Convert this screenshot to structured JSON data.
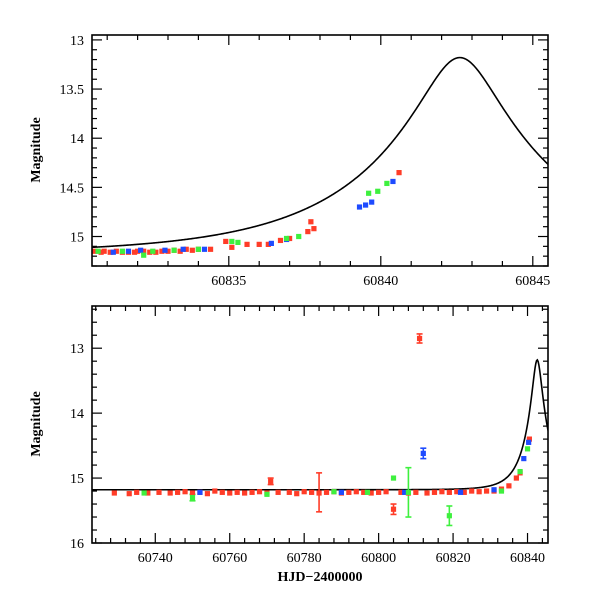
{
  "chart_data": [
    {
      "id": "top",
      "type": "scatter",
      "title": "",
      "xlabel": "",
      "ylabel": "Magnitude",
      "xlim": [
        60830.5,
        60845.5
      ],
      "ylim": [
        15.3,
        12.95
      ],
      "inverted_y": true,
      "grid": false,
      "legend": "none",
      "x_ticks": [
        60835,
        60840,
        60845
      ],
      "y_ticks": [
        13,
        13.5,
        14,
        14.5,
        15
      ],
      "x_tick_labels": [
        "60835",
        "60840",
        "60845"
      ],
      "y_tick_labels": [
        "13",
        "13.5",
        "14",
        "14.5",
        "15"
      ],
      "model": {
        "peak_x": 60842.6,
        "peak_mag": 13.18,
        "base_mag": 15.18,
        "u0": 0.2,
        "tE": 6.0,
        "color": "#000000"
      },
      "series": [
        {
          "color": "#ff3c28",
          "points": [
            [
              60830.6,
              15.15
            ],
            [
              60830.8,
              15.16
            ],
            [
              60830.9,
              15.15
            ],
            [
              60831.1,
              15.16
            ],
            [
              60831.3,
              15.15
            ],
            [
              60831.5,
              15.16
            ],
            [
              60831.7,
              15.16
            ],
            [
              60831.9,
              15.16
            ],
            [
              60832.0,
              15.15
            ],
            [
              60832.2,
              15.15
            ],
            [
              60832.4,
              15.16
            ],
            [
              60832.6,
              15.16
            ],
            [
              60832.8,
              15.15
            ],
            [
              60833.0,
              15.15
            ],
            [
              60833.2,
              15.14
            ],
            [
              60833.4,
              15.15
            ],
            [
              60833.6,
              15.13
            ],
            [
              60833.8,
              15.14
            ],
            [
              60834.0,
              15.13
            ],
            [
              60834.4,
              15.13
            ],
            [
              60834.9,
              15.05
            ],
            [
              60835.1,
              15.11
            ],
            [
              60835.6,
              15.08
            ],
            [
              60836.0,
              15.08
            ],
            [
              60836.3,
              15.08
            ],
            [
              60836.7,
              15.04
            ],
            [
              60837.0,
              15.02
            ],
            [
              60837.7,
              14.85
            ],
            [
              60837.8,
              14.92
            ],
            [
              60837.6,
              14.95
            ],
            [
              60840.6,
              14.35
            ]
          ]
        },
        {
          "color": "#1e4bff",
          "points": [
            [
              60831.2,
              15.16
            ],
            [
              60831.7,
              15.15
            ],
            [
              60832.1,
              15.14
            ],
            [
              60832.9,
              15.14
            ],
            [
              60833.5,
              15.13
            ],
            [
              60834.2,
              15.13
            ],
            [
              60836.4,
              15.07
            ],
            [
              60836.9,
              15.03
            ],
            [
              60839.3,
              14.7
            ],
            [
              60839.5,
              14.68
            ],
            [
              60839.7,
              14.65
            ],
            [
              60840.4,
              14.44
            ]
          ]
        },
        {
          "color": "#3ef03e",
          "points": [
            [
              60830.7,
              15.15
            ],
            [
              60831.5,
              15.15
            ],
            [
              60832.2,
              15.19
            ],
            [
              60832.5,
              15.15
            ],
            [
              60833.2,
              15.14
            ],
            [
              60834.0,
              15.13
            ],
            [
              60835.1,
              15.05
            ],
            [
              60835.3,
              15.06
            ],
            [
              60836.9,
              15.02
            ],
            [
              60837.3,
              15.0
            ],
            [
              60839.6,
              14.56
            ],
            [
              60839.9,
              14.54
            ],
            [
              60840.2,
              14.46
            ]
          ]
        }
      ]
    },
    {
      "id": "bottom",
      "type": "scatter",
      "title": "",
      "xlabel": "HJD−2400000",
      "ylabel": "Magnitude",
      "xlim": [
        60723,
        60845.5
      ],
      "ylim": [
        16.0,
        12.35
      ],
      "inverted_y": true,
      "grid": false,
      "legend": "none",
      "x_ticks": [
        60740,
        60760,
        60780,
        60800,
        60820,
        60840
      ],
      "y_ticks": [
        13,
        14,
        15,
        16
      ],
      "x_tick_labels": [
        "60740",
        "60760",
        "60780",
        "60800",
        "60820",
        "60840"
      ],
      "y_tick_labels": [
        "13",
        "14",
        "15",
        "16"
      ],
      "model": {
        "peak_x": 60842.6,
        "peak_mag": 13.18,
        "base_mag": 15.18,
        "u0": 0.2,
        "tE": 6.0,
        "color": "#000000"
      },
      "series": [
        {
          "color": "#ff3c28",
          "points": [
            [
              60729,
              15.23
            ],
            [
              60733,
              15.24
            ],
            [
              60735,
              15.22
            ],
            [
              60738,
              15.23
            ],
            [
              60741,
              15.22
            ],
            [
              60744,
              15.23
            ],
            [
              60746,
              15.22
            ],
            [
              60748,
              15.21
            ],
            [
              60750,
              15.23
            ],
            [
              60752,
              15.22
            ],
            [
              60754,
              15.24
            ],
            [
              60756,
              15.2
            ],
            [
              60758,
              15.22
            ],
            [
              60760,
              15.23
            ],
            [
              60762,
              15.22
            ],
            [
              60764,
              15.23
            ],
            [
              60766,
              15.22
            ],
            [
              60768,
              15.21
            ],
            [
              60770,
              15.23
            ],
            [
              60771,
              15.05
            ],
            [
              60773,
              15.22
            ],
            [
              60776,
              15.22
            ],
            [
              60778,
              15.24
            ],
            [
              60780,
              15.21
            ],
            [
              60782,
              15.22
            ],
            [
              60784,
              15.23
            ],
            [
              60786,
              15.22
            ],
            [
              60788,
              15.21
            ],
            [
              60790,
              15.23
            ],
            [
              60792,
              15.22
            ],
            [
              60794,
              15.21
            ],
            [
              60796,
              15.22
            ],
            [
              60798,
              15.23
            ],
            [
              60800,
              15.22
            ],
            [
              60802,
              15.21
            ],
            [
              60804,
              15.48
            ],
            [
              60806,
              15.22
            ],
            [
              60808,
              15.23
            ],
            [
              60810,
              15.22
            ],
            [
              60811,
              12.85
            ],
            [
              60813,
              15.23
            ],
            [
              60815,
              15.22
            ],
            [
              60817,
              15.21
            ],
            [
              60819,
              15.22
            ],
            [
              60821,
              15.21
            ],
            [
              60823,
              15.22
            ],
            [
              60825,
              15.2
            ],
            [
              60827,
              15.21
            ],
            [
              60829,
              15.2
            ],
            [
              60831,
              15.2
            ],
            [
              60833,
              15.17
            ],
            [
              60835,
              15.12
            ],
            [
              60837,
              15.0
            ],
            [
              60838,
              14.92
            ],
            [
              60840.5,
              14.4
            ]
          ]
        },
        {
          "color": "#1e4bff",
          "points": [
            [
              60752,
              15.22
            ],
            [
              60790,
              15.22
            ],
            [
              60807,
              15.22
            ],
            [
              60812,
              14.62
            ],
            [
              60822,
              15.22
            ],
            [
              60831,
              15.18
            ],
            [
              60839,
              14.7
            ],
            [
              60840.3,
              14.45
            ]
          ]
        },
        {
          "color": "#3ef03e",
          "points": [
            [
              60737,
              15.23
            ],
            [
              60750,
              15.3
            ],
            [
              60770,
              15.25
            ],
            [
              60788,
              15.21
            ],
            [
              60797,
              15.22
            ],
            [
              60804,
              15.0
            ],
            [
              60808,
              15.22
            ],
            [
              60819,
              15.58
            ],
            [
              60833,
              15.2
            ],
            [
              60838,
              14.9
            ],
            [
              60840,
              14.55
            ]
          ]
        }
      ],
      "error_bars": [
        {
          "x": 60784,
          "y": 15.22,
          "err": 0.3,
          "color": "#ff3c28"
        },
        {
          "x": 60804,
          "y": 15.48,
          "err": 0.08,
          "color": "#ff3c28"
        },
        {
          "x": 60811,
          "y": 12.85,
          "err": 0.07,
          "color": "#ff3c28"
        },
        {
          "x": 60812,
          "y": 14.62,
          "err": 0.08,
          "color": "#1e4bff"
        },
        {
          "x": 60808,
          "y": 15.22,
          "err": 0.38,
          "color": "#3ef03e"
        },
        {
          "x": 60819,
          "y": 15.58,
          "err": 0.15,
          "color": "#3ef03e"
        },
        {
          "x": 60750,
          "y": 15.3,
          "err": 0.05,
          "color": "#3ef03e"
        },
        {
          "x": 60771,
          "y": 15.05,
          "err": 0.05,
          "color": "#ff3c28"
        }
      ]
    }
  ]
}
